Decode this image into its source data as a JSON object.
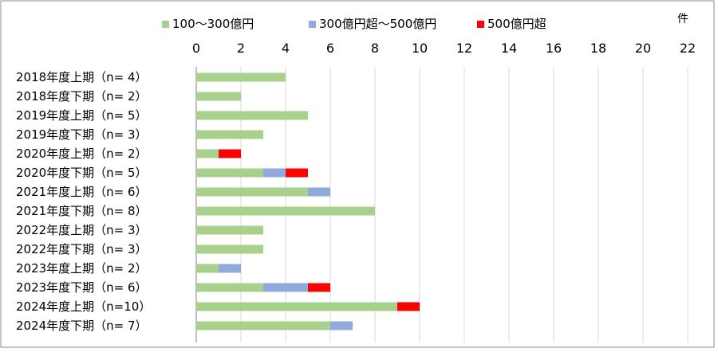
{
  "chart_data": {
    "type": "bar",
    "orientation": "horizontal",
    "stacked": true,
    "unit_label": "件",
    "xlim": [
      0,
      22
    ],
    "x_ticks": [
      0,
      2,
      4,
      6,
      8,
      10,
      12,
      14,
      16,
      18,
      20,
      22
    ],
    "grid": true,
    "legend_position": "top",
    "categories": [
      "2018年度上期（n=  4）",
      "2018年度下期（n=  2）",
      "2019年度上期（n=  5）",
      "2019年度下期（n=  3）",
      "2020年度上期（n=  2）",
      "2020年度下期（n=  5）",
      "2021年度上期（n=  6）",
      "2021年度下期（n=  8）",
      "2022年度上期（n=  3）",
      "2022年度下期（n=  3）",
      "2023年度上期（n=  2）",
      "2023年度下期（n=  6）",
      "2024年度上期（n=10）",
      "2024年度下期（n=  7）"
    ],
    "series": [
      {
        "name": "100～300億円",
        "color": "#a9d18e",
        "values": [
          4,
          2,
          5,
          3,
          1,
          3,
          5,
          8,
          3,
          3,
          1,
          3,
          9,
          6
        ]
      },
      {
        "name": "300億円超～500億円",
        "color": "#8faadc",
        "values": [
          0,
          0,
          0,
          0,
          0,
          1,
          1,
          0,
          0,
          0,
          1,
          2,
          0,
          1
        ]
      },
      {
        "name": "500億円超",
        "color": "#ff0000",
        "values": [
          0,
          0,
          0,
          0,
          1,
          1,
          0,
          0,
          0,
          0,
          0,
          1,
          1,
          0
        ]
      }
    ]
  }
}
